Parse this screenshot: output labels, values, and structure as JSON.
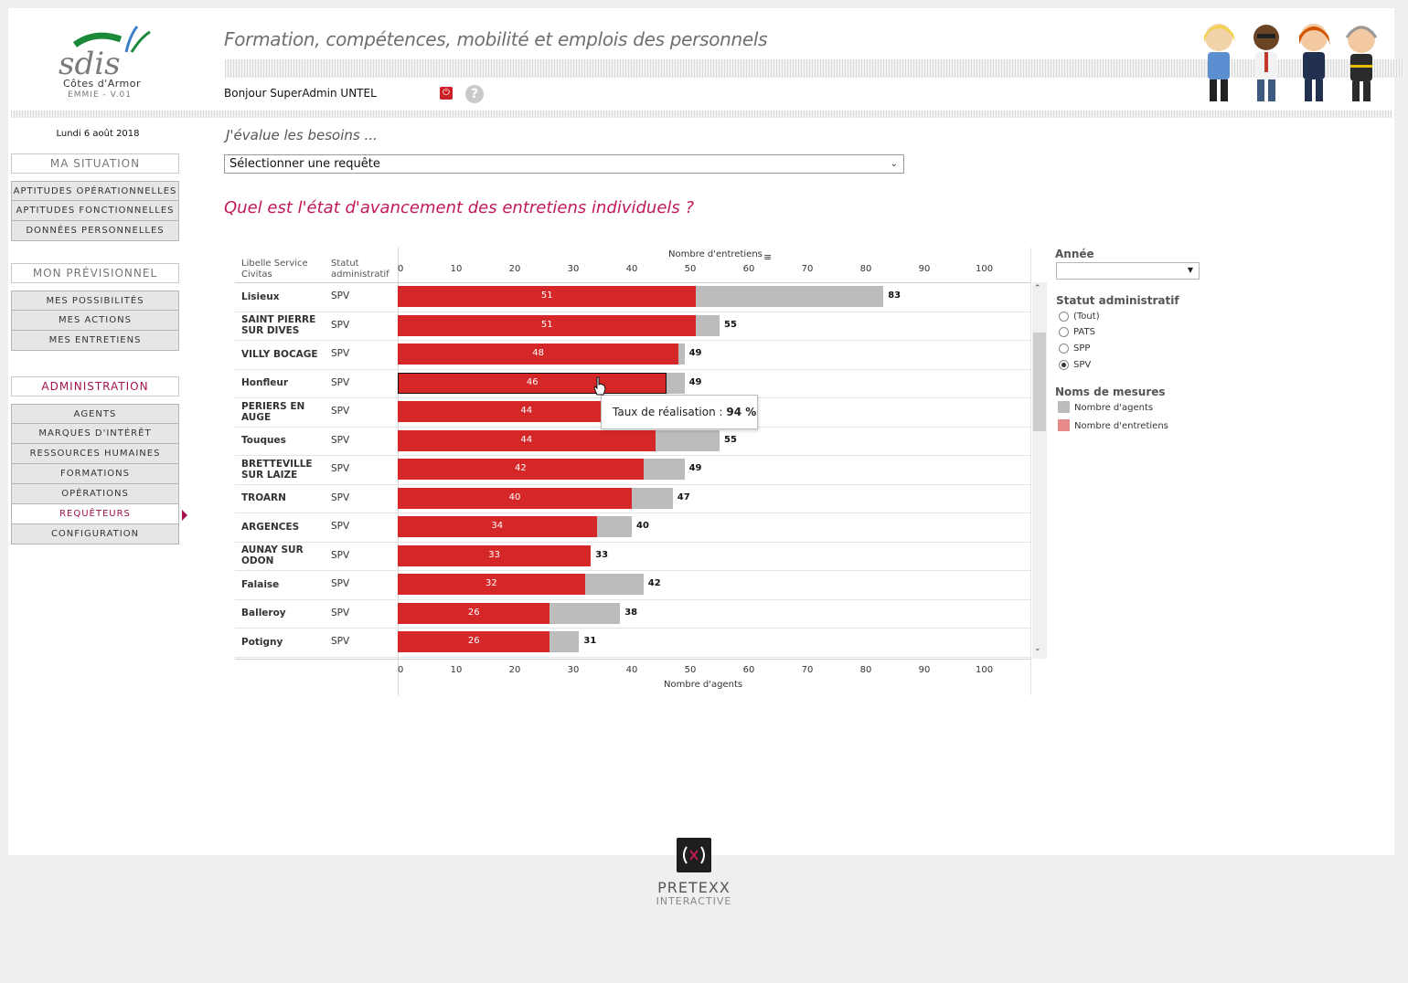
{
  "header": {
    "logo_text": "sdis",
    "logo_subtitle": "Côtes d'Armor",
    "version": "EMMIE - V.01",
    "app_title": "Formation, compétences, mobilité et emplois des personnels",
    "greeting": "Bonjour SuperAdmin UNTEL"
  },
  "sidebar": {
    "date": "Lundi 6 août 2018",
    "ma_situation": {
      "title": "MA SITUATION",
      "items": [
        "APTITUDES OPÉRATIONNELLES",
        "APTITUDES FONCTIONNELLES",
        "DONNÉES PERSONNELLES"
      ]
    },
    "mon_previsionnel": {
      "title": "MON PRÉVISIONNEL",
      "items": [
        "MES POSSIBILITÉS",
        "MES ACTIONS",
        "MES ENTRETIENS"
      ]
    },
    "administration": {
      "title": "ADMINISTRATION",
      "items": [
        "AGENTS",
        "MARQUES D'INTÉRÊT",
        "RESSOURCES HUMAINES",
        "FORMATIONS",
        "OPÉRATIONS",
        "REQUÊTEURS",
        "CONFIGURATION"
      ],
      "active_index": 5
    }
  },
  "main": {
    "evalue_label": "J'évalue les besoins ...",
    "query_select": "Sélectionner une requête",
    "question": "Quel est l'état d'avancement des entretiens individuels ?"
  },
  "chart_data": {
    "type": "bar",
    "orientation": "horizontal",
    "column_header_service": "Libelle Service Civitas",
    "column_header_statut": "Statut administratif",
    "top_axis_title": "Nombre d'entretiens",
    "bottom_axis_title": "Nombre d'agents",
    "xlim": [
      0,
      105
    ],
    "ticks": [
      0,
      10,
      20,
      30,
      40,
      50,
      60,
      70,
      80,
      90,
      100
    ],
    "categories": [
      "Lisieux",
      "SAINT PIERRE SUR DIVES",
      "VILLY BOCAGE",
      "Honfleur",
      "PERIERS EN AUGE",
      "Touques",
      "BRETTEVILLE SUR LAIZE",
      "TROARN",
      "ARGENCES",
      "AUNAY SUR ODON",
      "Falaise",
      "Balleroy",
      "Potigny"
    ],
    "category_lines": [
      [
        "Lisieux"
      ],
      [
        "SAINT PIERRE",
        "SUR DIVES"
      ],
      [
        "VILLY BOCAGE"
      ],
      [
        "Honfleur"
      ],
      [
        "PERIERS EN",
        "AUGE"
      ],
      [
        "Touques"
      ],
      [
        "BRETTEVILLE",
        "SUR LAIZE"
      ],
      [
        "TROARN"
      ],
      [
        "ARGENCES"
      ],
      [
        "AUNAY SUR",
        "ODON"
      ],
      [
        "Falaise"
      ],
      [
        "Balleroy"
      ],
      [
        "Potigny"
      ]
    ],
    "statut": [
      "SPV",
      "SPV",
      "SPV",
      "SPV",
      "SPV",
      "SPV",
      "SPV",
      "SPV",
      "SPV",
      "SPV",
      "SPV",
      "SPV",
      "SPV"
    ],
    "series": [
      {
        "name": "Nombre d'agents",
        "color": "#bcbcbc",
        "values": [
          83,
          55,
          49,
          49,
          null,
          55,
          49,
          47,
          40,
          33,
          42,
          38,
          31
        ]
      },
      {
        "name": "Nombre d'entretiens",
        "color": "#d62728",
        "values": [
          51,
          51,
          48,
          46,
          44,
          44,
          42,
          40,
          34,
          33,
          32,
          26,
          26
        ]
      }
    ],
    "highlighted_index": 3,
    "tooltip": {
      "label": "Taux de réalisation : ",
      "value": "94 %"
    }
  },
  "filters": {
    "annee_title": "Année",
    "annee_value": "",
    "statut_title": "Statut administratif",
    "statut_options": [
      "(Tout)",
      "PATS",
      "SPP",
      "SPV"
    ],
    "statut_selected": 3,
    "mesures_title": "Noms de mesures",
    "mesures": [
      {
        "label": "Nombre d'agents",
        "color": "#bcbcbc"
      },
      {
        "label": "Nombre d'entretiens",
        "color": "#e88a8c"
      }
    ]
  },
  "footer": {
    "brand": "PRETEXX",
    "brand_sub": "INTERACTIVE"
  }
}
